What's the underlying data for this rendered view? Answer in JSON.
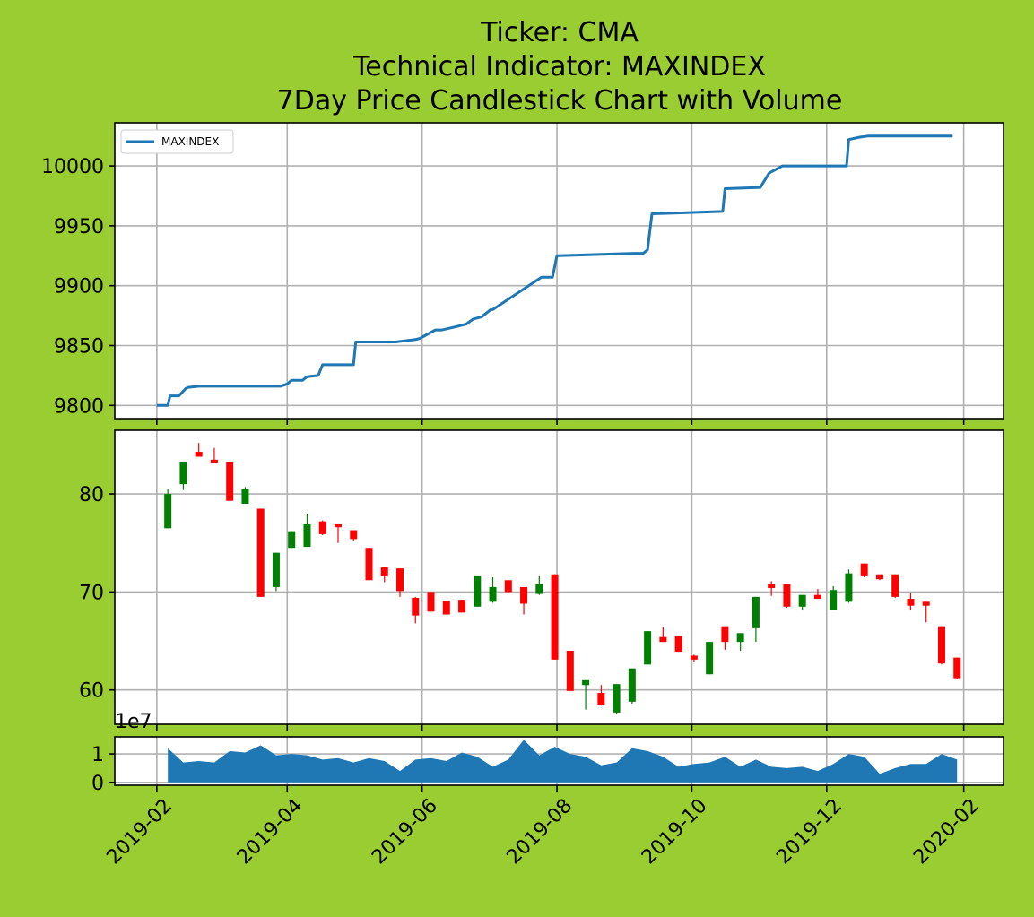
{
  "figure": {
    "background": "#9acd32",
    "title_lines": [
      "Ticker: CMA",
      "Technical Indicator: MAXINDEX",
      "7Day Price Candlestick Chart with Volume"
    ]
  },
  "chart_data": [
    {
      "type": "line",
      "name": "indicator-panel",
      "legend": "MAXINDEX",
      "legend_loc": "upper-left",
      "color": "#1f77b4",
      "ylim": [
        9789,
        10036
      ],
      "yticks": [
        9800,
        9850,
        9900,
        9950,
        10000
      ],
      "grid": true,
      "x": [
        "2019-02-01",
        "2019-02-06",
        "2019-02-07",
        "2019-02-11",
        "2019-02-13",
        "2019-02-14",
        "2019-02-15",
        "2019-02-20",
        "2019-03-01",
        "2019-03-15",
        "2019-03-29",
        "2019-04-01",
        "2019-04-03",
        "2019-04-08",
        "2019-04-10",
        "2019-04-15",
        "2019-04-17",
        "2019-05-01",
        "2019-05-02",
        "2019-05-20",
        "2019-05-29",
        "2019-05-31",
        "2019-06-03",
        "2019-06-07",
        "2019-06-10",
        "2019-06-17",
        "2019-06-21",
        "2019-06-24",
        "2019-06-28",
        "2019-07-02",
        "2019-07-03",
        "2019-07-25",
        "2019-07-26",
        "2019-07-30",
        "2019-08-01",
        "2019-09-05",
        "2019-09-09",
        "2019-09-11",
        "2019-09-13",
        "2019-10-15",
        "2019-10-16",
        "2019-11-01",
        "2019-11-05",
        "2019-11-08",
        "2019-11-11",
        "2019-12-10",
        "2019-12-11",
        "2019-12-16",
        "2019-12-20",
        "2020-01-27"
      ],
      "y": [
        9800,
        9800,
        9808,
        9808,
        9812,
        9814,
        9815,
        9816,
        9816,
        9816,
        9816,
        9818,
        9821,
        9821,
        9824,
        9825,
        9834,
        9834,
        9853,
        9853,
        9855,
        9856,
        9859,
        9863,
        9863,
        9866,
        9868,
        9872,
        9874,
        9880,
        9880,
        9907,
        9907,
        9907,
        9925,
        9927,
        9927,
        9930,
        9960,
        9962,
        9981,
        9982,
        9994,
        9997,
        10000,
        10000,
        10022,
        10024,
        10025,
        10025
      ]
    },
    {
      "type": "candlestick",
      "name": "price-panel",
      "up_color": "#008000",
      "down_color": "#ff0000",
      "ylim": [
        56.5,
        86.5
      ],
      "yticks": [
        60,
        70,
        80
      ],
      "grid": true,
      "x": [
        "2019-02-06",
        "2019-02-13",
        "2019-02-20",
        "2019-02-27",
        "2019-03-06",
        "2019-03-13",
        "2019-03-20",
        "2019-03-27",
        "2019-04-03",
        "2019-04-10",
        "2019-04-17",
        "2019-04-24",
        "2019-05-01",
        "2019-05-08",
        "2019-05-15",
        "2019-05-22",
        "2019-05-29",
        "2019-06-05",
        "2019-06-12",
        "2019-06-19",
        "2019-06-26",
        "2019-07-03",
        "2019-07-10",
        "2019-07-17",
        "2019-07-24",
        "2019-07-31",
        "2019-08-07",
        "2019-08-14",
        "2019-08-21",
        "2019-08-28",
        "2019-09-04",
        "2019-09-11",
        "2019-09-18",
        "2019-09-25",
        "2019-10-02",
        "2019-10-09",
        "2019-10-16",
        "2019-10-23",
        "2019-10-30",
        "2019-11-06",
        "2019-11-13",
        "2019-11-20",
        "2019-11-27",
        "2019-12-04",
        "2019-12-11",
        "2019-12-18",
        "2019-12-25",
        "2020-01-01",
        "2020-01-08",
        "2020-01-15",
        "2020-01-22",
        "2020-01-29"
      ],
      "open": [
        76.5,
        81.0,
        84.3,
        83.5,
        83.3,
        79.0,
        78.5,
        70.5,
        74.5,
        74.6,
        77.2,
        76.9,
        76.3,
        74.5,
        72.5,
        72.4,
        69.4,
        70.0,
        69.1,
        69.2,
        68.5,
        69.0,
        71.2,
        70.5,
        69.8,
        71.8,
        64.0,
        60.5,
        59.7,
        57.7,
        58.8,
        62.6,
        65.4,
        65.5,
        63.5,
        61.6,
        66.5,
        64.9,
        66.3,
        70.8,
        70.8,
        68.5,
        69.7,
        68.2,
        69.0,
        72.9,
        71.8,
        71.8,
        69.3,
        69.0,
        66.5,
        63.3
      ],
      "high": [
        80.5,
        83.3,
        85.2,
        84.7,
        83.3,
        80.7,
        78.5,
        74.0,
        76.2,
        78.0,
        77.3,
        76.9,
        76.3,
        74.5,
        72.5,
        72.4,
        69.5,
        70.0,
        69.1,
        69.2,
        71.6,
        71.5,
        71.2,
        70.5,
        71.6,
        71.8,
        64.0,
        61.0,
        60.5,
        60.6,
        62.2,
        66.0,
        66.4,
        65.5,
        63.6,
        64.9,
        66.5,
        65.8,
        69.5,
        71.1,
        70.8,
        69.5,
        70.3,
        70.6,
        72.3,
        72.9,
        71.8,
        71.8,
        69.9,
        69.0,
        66.5,
        63.3
      ],
      "low": [
        76.5,
        80.4,
        83.9,
        83.2,
        79.3,
        79.0,
        69.5,
        70.1,
        74.5,
        74.6,
        75.8,
        75.0,
        75.2,
        71.2,
        71.0,
        69.5,
        66.8,
        68.0,
        67.7,
        67.9,
        68.5,
        68.9,
        69.9,
        67.7,
        69.7,
        63.1,
        59.9,
        58.0,
        58.4,
        57.5,
        58.6,
        62.6,
        65.0,
        63.9,
        62.9,
        61.6,
        64.1,
        64.0,
        64.9,
        69.6,
        68.4,
        68.2,
        69.3,
        68.2,
        68.9,
        71.5,
        71.2,
        69.4,
        68.2,
        66.9,
        62.6,
        61.1
      ],
      "close": [
        80.0,
        83.3,
        83.8,
        83.2,
        79.3,
        80.5,
        69.5,
        74.0,
        76.2,
        76.9,
        75.9,
        76.6,
        75.4,
        71.2,
        71.6,
        70.1,
        67.6,
        68.0,
        67.7,
        67.9,
        71.6,
        70.5,
        70.0,
        68.8,
        70.8,
        63.1,
        59.9,
        61.0,
        58.5,
        60.6,
        62.2,
        66.0,
        64.9,
        63.9,
        63.1,
        64.9,
        64.9,
        65.8,
        69.5,
        70.4,
        68.5,
        69.7,
        69.3,
        70.2,
        71.9,
        71.6,
        71.3,
        69.5,
        68.6,
        68.6,
        62.7,
        61.2
      ]
    },
    {
      "type": "area",
      "name": "volume-panel",
      "color": "#1f77b4",
      "ylim": [
        -0.1,
        1.6
      ],
      "yticks": [
        0,
        1
      ],
      "offset_label": "1e7",
      "grid": true,
      "x": [
        "2019-02-06",
        "2019-02-13",
        "2019-02-20",
        "2019-02-27",
        "2019-03-06",
        "2019-03-13",
        "2019-03-20",
        "2019-03-27",
        "2019-04-03",
        "2019-04-10",
        "2019-04-17",
        "2019-04-24",
        "2019-05-01",
        "2019-05-08",
        "2019-05-15",
        "2019-05-22",
        "2019-05-29",
        "2019-06-05",
        "2019-06-12",
        "2019-06-19",
        "2019-06-26",
        "2019-07-03",
        "2019-07-10",
        "2019-07-17",
        "2019-07-24",
        "2019-07-31",
        "2019-08-07",
        "2019-08-14",
        "2019-08-21",
        "2019-08-28",
        "2019-09-04",
        "2019-09-11",
        "2019-09-18",
        "2019-09-25",
        "2019-10-02",
        "2019-10-09",
        "2019-10-16",
        "2019-10-23",
        "2019-10-30",
        "2019-11-06",
        "2019-11-13",
        "2019-11-20",
        "2019-11-27",
        "2019-12-04",
        "2019-12-11",
        "2019-12-18",
        "2019-12-25",
        "2020-01-01",
        "2020-01-08",
        "2020-01-15",
        "2020-01-22",
        "2020-01-29"
      ],
      "values": [
        1.2,
        0.7,
        0.75,
        0.7,
        1.1,
        1.05,
        1.3,
        0.95,
        1.0,
        0.95,
        0.8,
        0.85,
        0.7,
        0.85,
        0.75,
        0.4,
        0.8,
        0.85,
        0.75,
        1.05,
        0.9,
        0.55,
        0.8,
        1.5,
        0.95,
        1.25,
        1.0,
        0.9,
        0.6,
        0.7,
        1.2,
        1.1,
        0.9,
        0.55,
        0.65,
        0.7,
        0.9,
        0.55,
        0.8,
        0.55,
        0.5,
        0.55,
        0.4,
        0.65,
        1.0,
        0.9,
        0.3,
        0.5,
        0.65,
        0.65,
        1.0,
        0.8
      ]
    }
  ],
  "x_axis": {
    "xlim": [
      "2019-01-13",
      "2020-02-19"
    ],
    "ticks": [
      {
        "date": "2019-02-01",
        "label": "2019-02"
      },
      {
        "date": "2019-04-01",
        "label": "2019-04"
      },
      {
        "date": "2019-06-01",
        "label": "2019-06"
      },
      {
        "date": "2019-08-01",
        "label": "2019-08"
      },
      {
        "date": "2019-10-01",
        "label": "2019-10"
      },
      {
        "date": "2019-12-01",
        "label": "2019-12"
      },
      {
        "date": "2020-02-01",
        "label": "2020-02"
      }
    ]
  }
}
